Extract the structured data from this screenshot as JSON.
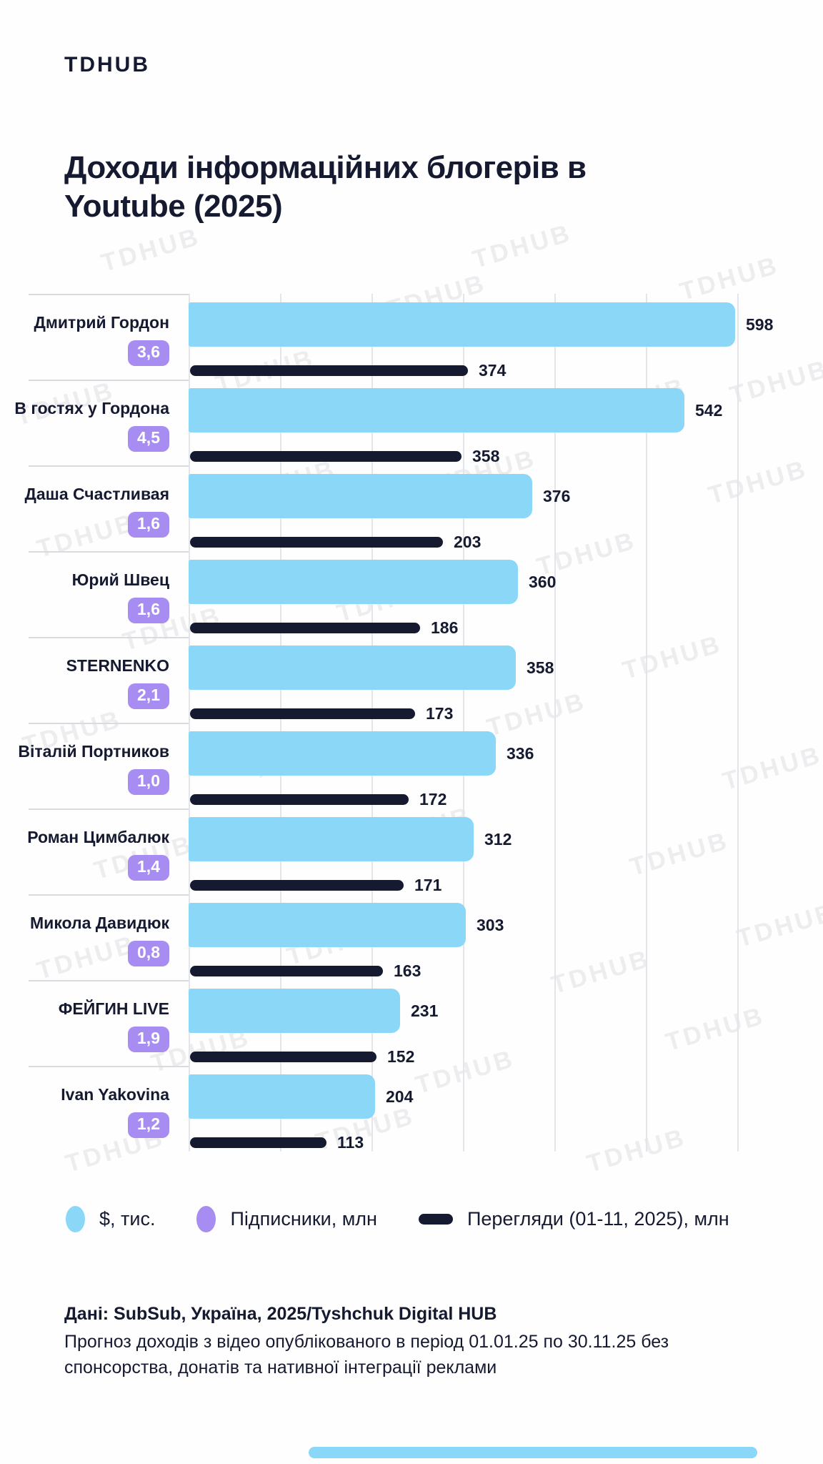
{
  "brand": {
    "logo": "TDHUB",
    "watermark": "TDHUB"
  },
  "title": {
    "lines": [
      "Доходи інформаційних блогерів в",
      "Youtube (2025)"
    ]
  },
  "chart_data": {
    "type": "bar",
    "orientation": "horizontal",
    "title": "Доходи інформаційних блогерів в Youtube (2025)",
    "categories": [
      "Дмитрий Гордон",
      "В гостях у Гордона",
      "Даша Счастливая",
      "Юрий Швец",
      "STERNENKO",
      "Віталій Портников",
      "Роман Цимбалюк",
      "Микола Давидюк",
      "ФЕЙГИН LIVE",
      "Ivan Yakovina"
    ],
    "series": [
      {
        "name": "$, тис.",
        "color": "#8bd7f8",
        "values": [
          598,
          542,
          376,
          360,
          358,
          336,
          312,
          303,
          231,
          204
        ]
      },
      {
        "name": "Підписники, млн",
        "color": "#a78cf2",
        "values": [
          "3,6",
          "4,5",
          "1,6",
          "1,6",
          "2,1",
          "1,0",
          "1,4",
          "0,8",
          "1,9",
          "1,2"
        ]
      },
      {
        "name": "Перегляди (01-11, 2025), млн",
        "color": "#151a31",
        "values": [
          374,
          358,
          203,
          186,
          173,
          172,
          171,
          163,
          152,
          113
        ]
      }
    ],
    "xlabel": "",
    "ylabel": "",
    "grid": "vertical gridlines, unlabeled",
    "legend_position": "bottom"
  },
  "legend": {
    "items": [
      {
        "label": "$, тис.",
        "shape": "ellipse",
        "color": "#8bd7f8"
      },
      {
        "label": "Підписники, млн",
        "shape": "ellipse",
        "color": "#a78cf2"
      },
      {
        "label": "Перегляди (01-11, 2025), млн",
        "shape": "dash",
        "color": "#151a31"
      }
    ]
  },
  "footer": {
    "source": "Дані: SubSub, Україна, 2025/Tyshchuk Digital HUB",
    "note": "Прогноз доходів з відео опублікованого в період 01.01.25 по 30.11.25 без спонсорства, донатів та нативної інтеграції реклами"
  },
  "colors": {
    "navy": "#151a31",
    "blue": "#8bd7f8",
    "purple": "#a78cf2",
    "grid": "#e4e5ea",
    "sep": "#d9dbe1"
  }
}
